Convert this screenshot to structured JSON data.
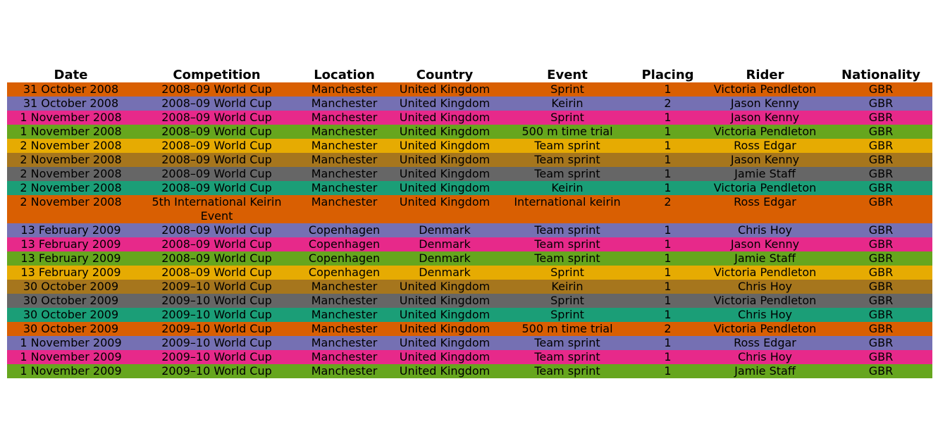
{
  "chart_data": {
    "type": "table",
    "columns": [
      "Date",
      "Competition",
      "Location",
      "Country",
      "Event",
      "Placing",
      "Rider",
      "Nationality"
    ],
    "row_colors": [
      "#d95f02",
      "#7570b3",
      "#e7298a",
      "#66a61e",
      "#e6ab02",
      "#a6761d",
      "#666666",
      "#1b9e77"
    ],
    "rows": [
      [
        "31 October 2008",
        "2008–09 World Cup",
        "Manchester",
        "United Kingdom",
        "Sprint",
        "1",
        "Victoria Pendleton",
        "GBR"
      ],
      [
        "31 October 2008",
        "2008–09 World Cup",
        "Manchester",
        "United Kingdom",
        "Keirin",
        "2",
        "Jason Kenny",
        "GBR"
      ],
      [
        "1 November 2008",
        "2008–09 World Cup",
        "Manchester",
        "United Kingdom",
        "Sprint",
        "1",
        "Jason Kenny",
        "GBR"
      ],
      [
        "1 November 2008",
        "2008–09 World Cup",
        "Manchester",
        "United Kingdom",
        "500 m time trial",
        "1",
        "Victoria Pendleton",
        "GBR"
      ],
      [
        "2 November 2008",
        "2008–09 World Cup",
        "Manchester",
        "United Kingdom",
        "Team sprint",
        "1",
        "Ross Edgar",
        "GBR"
      ],
      [
        "2 November 2008",
        "2008–09 World Cup",
        "Manchester",
        "United Kingdom",
        "Team sprint",
        "1",
        "Jason Kenny",
        "GBR"
      ],
      [
        "2 November 2008",
        "2008–09 World Cup",
        "Manchester",
        "United Kingdom",
        "Team sprint",
        "1",
        "Jamie Staff",
        "GBR"
      ],
      [
        "2 November 2008",
        "2008–09 World Cup",
        "Manchester",
        "United Kingdom",
        "Keirin",
        "1",
        "Victoria Pendleton",
        "GBR"
      ],
      [
        "2 November 2008",
        "5th International Keirin Event",
        "Manchester",
        "United Kingdom",
        "International keirin",
        "2",
        "Ross Edgar",
        "GBR"
      ],
      [
        "13 February 2009",
        "2008–09 World Cup",
        "Copenhagen",
        "Denmark",
        "Team sprint",
        "1",
        "Chris Hoy",
        "GBR"
      ],
      [
        "13 February 2009",
        "2008–09 World Cup",
        "Copenhagen",
        "Denmark",
        "Team sprint",
        "1",
        "Jason Kenny",
        "GBR"
      ],
      [
        "13 February 2009",
        "2008–09 World Cup",
        "Copenhagen",
        "Denmark",
        "Team sprint",
        "1",
        "Jamie Staff",
        "GBR"
      ],
      [
        "13 February 2009",
        "2008–09 World Cup",
        "Copenhagen",
        "Denmark",
        "Sprint",
        "1",
        "Victoria Pendleton",
        "GBR"
      ],
      [
        "30 October 2009",
        "2009–10 World Cup",
        "Manchester",
        "United Kingdom",
        "Keirin",
        "1",
        "Chris Hoy",
        "GBR"
      ],
      [
        "30 October 2009",
        "2009–10 World Cup",
        "Manchester",
        "United Kingdom",
        "Sprint",
        "1",
        "Victoria Pendleton",
        "GBR"
      ],
      [
        "30 October 2009",
        "2009–10 World Cup",
        "Manchester",
        "United Kingdom",
        "Sprint",
        "1",
        "Chris Hoy",
        "GBR"
      ],
      [
        "30 October 2009",
        "2009–10 World Cup",
        "Manchester",
        "United Kingdom",
        "500 m time trial",
        "2",
        "Victoria Pendleton",
        "GBR"
      ],
      [
        "1 November 2009",
        "2009–10 World Cup",
        "Manchester",
        "United Kingdom",
        "Team sprint",
        "1",
        "Ross Edgar",
        "GBR"
      ],
      [
        "1 November 2009",
        "2009–10 World Cup",
        "Manchester",
        "United Kingdom",
        "Team sprint",
        "1",
        "Chris Hoy",
        "GBR"
      ],
      [
        "1 November 2009",
        "2009–10 World Cup",
        "Manchester",
        "United Kingdom",
        "Team sprint",
        "1",
        "Jamie Staff",
        "GBR"
      ]
    ]
  }
}
